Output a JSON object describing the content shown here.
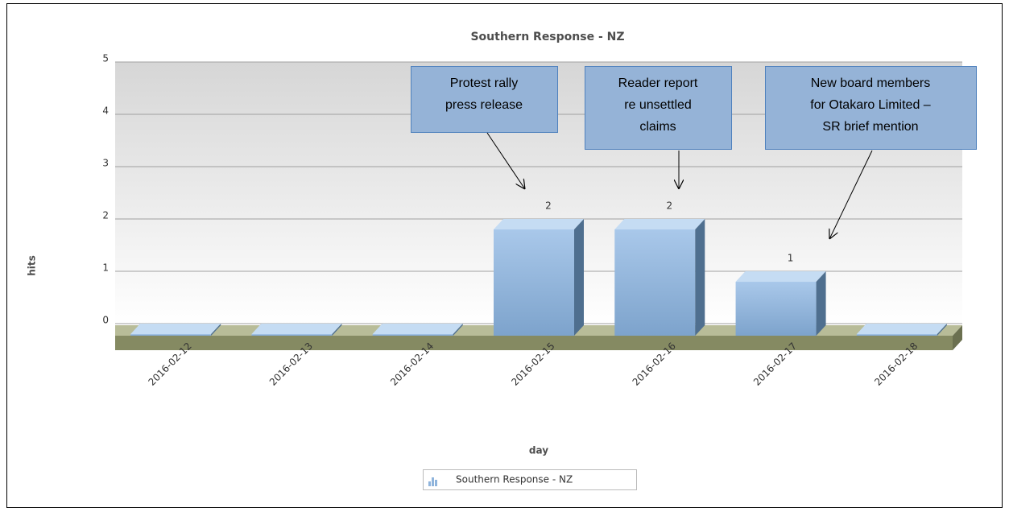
{
  "chart_data": {
    "type": "bar3d",
    "title": "Southern Response - NZ",
    "categories": [
      "2016-02-12",
      "2016-02-13",
      "2016-02-14",
      "2016-02-15",
      "2016-02-16",
      "2016-02-17",
      "2016-02-18"
    ],
    "series": [
      {
        "name": "Southern Response - NZ",
        "color": "#8fb4dc",
        "values": [
          0,
          0,
          0,
          2,
          2,
          1,
          0
        ]
      }
    ],
    "ylim": [
      0,
      5
    ],
    "yticks": [
      0,
      1,
      2,
      3,
      4,
      5
    ],
    "grid": true,
    "x_label": "day",
    "y_label": "hits",
    "legend": "bottom",
    "annotations": [
      {
        "lines": [
          "Protest rally",
          "press release"
        ]
      },
      {
        "lines": [
          "Reader report",
          "re unsettled",
          "claims"
        ]
      },
      {
        "lines": [
          "New board members",
          "for Otakaro Limited –",
          "SR brief mention"
        ]
      }
    ]
  }
}
